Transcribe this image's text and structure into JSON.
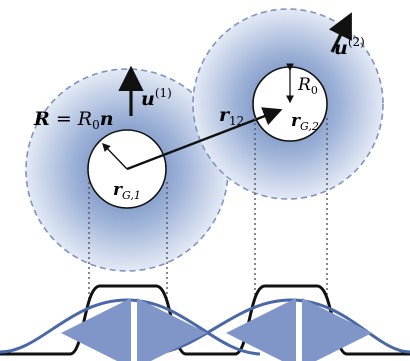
{
  "labels": {
    "R_eq": "R",
    "R_eq_mid": " = ",
    "R0_in_eq": "R",
    "R0_in_eq_sub": "0",
    "n_vec": "n",
    "u1": "u",
    "u1_sup": "(1)",
    "u2": "u",
    "u2_sup": "(2)",
    "r12": "r",
    "r12_sub": "12",
    "R0": "R",
    "R0_sub": "0",
    "rG1": "r",
    "rG1_sub": "G,1",
    "rG2": "r",
    "rG2_sub": "G,2"
  },
  "colors": {
    "halo_center": "#5b7bb5",
    "halo_edge": "#dbe4f2",
    "dashed_outline": "#7f93c2",
    "profile_blue": "#4a68a8",
    "profile_black": "#111111",
    "arrow_fill": "#8096c8"
  }
}
